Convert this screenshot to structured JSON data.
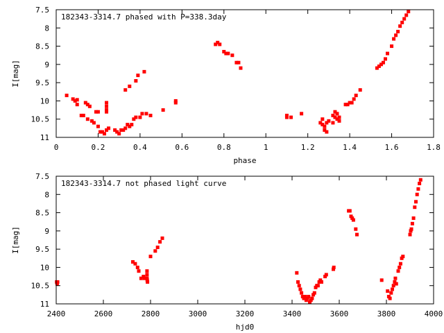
{
  "chart_data": [
    {
      "type": "scatter",
      "title": "182343-3314.7 phased with P=338.3day",
      "xlabel": "phase",
      "ylabel": "I[mag]",
      "xlim": [
        0,
        1.8
      ],
      "ylim": [
        11,
        7.5
      ],
      "y_inverted": true,
      "xticks": [
        "0",
        "0.2",
        "0.4",
        "0.6",
        "0.8",
        "1",
        "1.2",
        "1.4",
        "1.6",
        "1.8"
      ],
      "xtick_values": [
        0,
        0.2,
        0.4,
        0.6,
        0.8,
        1.0,
        1.2,
        1.4,
        1.6,
        1.8
      ],
      "yticks": [
        "7.5",
        "8",
        "8.5",
        "9",
        "9.5",
        "10",
        "10.5",
        "11"
      ],
      "ytick_values": [
        7.5,
        8,
        8.5,
        9,
        9.5,
        10,
        10.5,
        11
      ],
      "grid": false,
      "marker_color": "#ff0000",
      "points": [
        [
          0.05,
          9.85
        ],
        [
          0.08,
          9.95
        ],
        [
          0.09,
          10.0
        ],
        [
          0.1,
          10.1
        ],
        [
          0.1,
          9.97
        ],
        [
          0.12,
          10.4
        ],
        [
          0.13,
          10.4
        ],
        [
          0.14,
          10.05
        ],
        [
          0.15,
          10.1
        ],
        [
          0.15,
          10.5
        ],
        [
          0.16,
          10.15
        ],
        [
          0.17,
          10.55
        ],
        [
          0.18,
          10.6
        ],
        [
          0.19,
          10.3
        ],
        [
          0.2,
          10.3
        ],
        [
          0.2,
          10.7
        ],
        [
          0.21,
          10.85
        ],
        [
          0.22,
          10.85
        ],
        [
          0.23,
          10.9
        ],
        [
          0.24,
          10.05
        ],
        [
          0.24,
          10.15
        ],
        [
          0.24,
          10.25
        ],
        [
          0.24,
          10.3
        ],
        [
          0.24,
          10.8
        ],
        [
          0.25,
          10.75
        ],
        [
          0.28,
          10.8
        ],
        [
          0.29,
          10.85
        ],
        [
          0.3,
          10.9
        ],
        [
          0.31,
          10.8
        ],
        [
          0.32,
          10.8
        ],
        [
          0.33,
          9.7
        ],
        [
          0.33,
          10.75
        ],
        [
          0.34,
          10.65
        ],
        [
          0.35,
          10.7
        ],
        [
          0.35,
          9.6
        ],
        [
          0.36,
          10.65
        ],
        [
          0.37,
          10.5
        ],
        [
          0.38,
          10.45
        ],
        [
          0.38,
          9.45
        ],
        [
          0.39,
          9.3
        ],
        [
          0.4,
          10.45
        ],
        [
          0.41,
          10.35
        ],
        [
          0.42,
          9.2
        ],
        [
          0.43,
          10.35
        ],
        [
          0.45,
          10.4
        ],
        [
          0.51,
          10.25
        ],
        [
          0.57,
          10.05
        ],
        [
          0.57,
          10.0
        ],
        [
          0.76,
          8.45
        ],
        [
          0.77,
          8.4
        ],
        [
          0.78,
          8.45
        ],
        [
          0.8,
          8.65
        ],
        [
          0.81,
          8.7
        ],
        [
          0.82,
          8.7
        ],
        [
          0.84,
          8.75
        ],
        [
          0.86,
          8.95
        ],
        [
          0.87,
          8.95
        ],
        [
          0.88,
          9.1
        ],
        [
          1.1,
          10.45
        ],
        [
          1.1,
          10.4
        ],
        [
          1.12,
          10.45
        ],
        [
          1.17,
          10.35
        ],
        [
          1.26,
          10.6
        ],
        [
          1.27,
          10.65
        ],
        [
          1.27,
          10.5
        ],
        [
          1.28,
          10.7
        ],
        [
          1.28,
          10.8
        ],
        [
          1.29,
          10.85
        ],
        [
          1.29,
          10.6
        ],
        [
          1.3,
          10.55
        ],
        [
          1.32,
          10.6
        ],
        [
          1.32,
          10.4
        ],
        [
          1.33,
          10.45
        ],
        [
          1.33,
          10.3
        ],
        [
          1.34,
          10.35
        ],
        [
          1.34,
          10.5
        ],
        [
          1.35,
          10.45
        ],
        [
          1.35,
          10.55
        ],
        [
          1.38,
          10.1
        ],
        [
          1.39,
          10.1
        ],
        [
          1.4,
          10.05
        ],
        [
          1.41,
          10.05
        ],
        [
          1.42,
          9.95
        ],
        [
          1.43,
          9.85
        ],
        [
          1.45,
          9.7
        ],
        [
          1.53,
          9.1
        ],
        [
          1.54,
          9.05
        ],
        [
          1.55,
          9.0
        ],
        [
          1.56,
          8.95
        ],
        [
          1.57,
          8.85
        ],
        [
          1.58,
          8.7
        ],
        [
          1.6,
          8.5
        ],
        [
          1.61,
          8.3
        ],
        [
          1.62,
          8.2
        ],
        [
          1.63,
          8.1
        ],
        [
          1.64,
          7.95
        ],
        [
          1.65,
          7.85
        ],
        [
          1.66,
          7.75
        ],
        [
          1.67,
          7.65
        ],
        [
          1.68,
          7.55
        ]
      ]
    },
    {
      "type": "scatter",
      "title": "182343-3314.7 not phased light curve",
      "xlabel": "hjd0",
      "ylabel": "I[mag]",
      "xlim": [
        2400,
        4000
      ],
      "ylim": [
        11,
        7.5
      ],
      "y_inverted": true,
      "xticks": [
        "2400",
        "2600",
        "2800",
        "3000",
        "3200",
        "3400",
        "3600",
        "3800",
        "4000"
      ],
      "xtick_values": [
        2400,
        2600,
        2800,
        3000,
        3200,
        3400,
        3600,
        3800,
        4000
      ],
      "yticks": [
        "7.5",
        "8",
        "8.5",
        "9",
        "9.5",
        "10",
        "10.5",
        "11"
      ],
      "ytick_values": [
        7.5,
        8,
        8.5,
        9,
        9.5,
        10,
        10.5,
        11
      ],
      "grid": false,
      "marker_color": "#ff0000",
      "points": [
        [
          2402,
          10.4
        ],
        [
          2404,
          10.45
        ],
        [
          2406,
          10.4
        ],
        [
          2725,
          9.85
        ],
        [
          2735,
          9.9
        ],
        [
          2745,
          10.0
        ],
        [
          2750,
          10.1
        ],
        [
          2760,
          10.3
        ],
        [
          2770,
          10.25
        ],
        [
          2775,
          10.3
        ],
        [
          2785,
          10.1
        ],
        [
          2785,
          10.2
        ],
        [
          2785,
          10.3
        ],
        [
          2786,
          10.35
        ],
        [
          2787,
          10.4
        ],
        [
          2800,
          9.7
        ],
        [
          2820,
          9.55
        ],
        [
          2830,
          9.45
        ],
        [
          2840,
          9.3
        ],
        [
          2850,
          9.2
        ],
        [
          3420,
          10.15
        ],
        [
          3425,
          10.4
        ],
        [
          3430,
          10.5
        ],
        [
          3435,
          10.6
        ],
        [
          3440,
          10.7
        ],
        [
          3445,
          10.8
        ],
        [
          3450,
          10.85
        ],
        [
          3455,
          10.8
        ],
        [
          3460,
          10.9
        ],
        [
          3465,
          10.85
        ],
        [
          3470,
          10.8
        ],
        [
          3475,
          10.95
        ],
        [
          3480,
          10.9
        ],
        [
          3485,
          10.85
        ],
        [
          3490,
          10.75
        ],
        [
          3495,
          10.7
        ],
        [
          3500,
          10.55
        ],
        [
          3505,
          10.5
        ],
        [
          3510,
          10.5
        ],
        [
          3515,
          10.4
        ],
        [
          3520,
          10.35
        ],
        [
          3525,
          10.4
        ],
        [
          3540,
          10.25
        ],
        [
          3545,
          10.2
        ],
        [
          3575,
          10.05
        ],
        [
          3577,
          10.0
        ],
        [
          3640,
          8.45
        ],
        [
          3645,
          8.45
        ],
        [
          3650,
          8.6
        ],
        [
          3655,
          8.65
        ],
        [
          3660,
          8.7
        ],
        [
          3670,
          8.95
        ],
        [
          3675,
          9.1
        ],
        [
          3780,
          10.35
        ],
        [
          3805,
          10.65
        ],
        [
          3810,
          10.8
        ],
        [
          3815,
          10.85
        ],
        [
          3820,
          10.7
        ],
        [
          3825,
          10.6
        ],
        [
          3830,
          10.5
        ],
        [
          3835,
          10.4
        ],
        [
          3838,
          10.3
        ],
        [
          3842,
          10.45
        ],
        [
          3850,
          10.1
        ],
        [
          3855,
          10.0
        ],
        [
          3860,
          9.9
        ],
        [
          3865,
          9.75
        ],
        [
          3870,
          9.7
        ],
        [
          3900,
          9.1
        ],
        [
          3903,
          9.0
        ],
        [
          3906,
          8.95
        ],
        [
          3910,
          8.8
        ],
        [
          3915,
          8.65
        ],
        [
          3920,
          8.35
        ],
        [
          3925,
          8.2
        ],
        [
          3930,
          8.0
        ],
        [
          3935,
          7.85
        ],
        [
          3940,
          7.7
        ],
        [
          3945,
          7.6
        ]
      ]
    }
  ]
}
